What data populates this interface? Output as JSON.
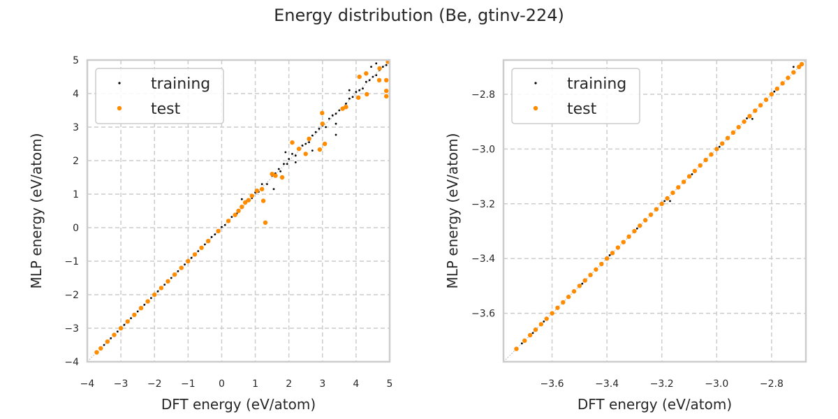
{
  "chart_data": {
    "title": "Energy distribution (Be, gtinv-224)",
    "panels": [
      {
        "type": "scatter",
        "xlabel": "DFT energy (eV/atom)",
        "ylabel": "MLP energy (eV/atom)",
        "xlim": [
          -4,
          5
        ],
        "ylim": [
          -4,
          5
        ],
        "xticks": [
          "−4",
          "−3",
          "−2",
          "−1",
          "0",
          "1",
          "2",
          "3",
          "4",
          "5"
        ],
        "yticks": [
          "−4",
          "−3",
          "−2",
          "−1",
          "0",
          "1",
          "2",
          "3",
          "4",
          "5"
        ],
        "tick_values": [
          -4,
          -3,
          -2,
          -1,
          0,
          1,
          2,
          3,
          4,
          5
        ],
        "grid": true,
        "legend": "top-left",
        "diagonal": true,
        "series": [
          {
            "name": "training",
            "color": "#000000",
            "points": [
              [
                -3.7,
                -3.7
              ],
              [
                -3.5,
                -3.5
              ],
              [
                -3.3,
                -3.3
              ],
              [
                -3.1,
                -3.1
              ],
              [
                -2.9,
                -2.9
              ],
              [
                -2.7,
                -2.7
              ],
              [
                -2.5,
                -2.5
              ],
              [
                -2.3,
                -2.3
              ],
              [
                -2.1,
                -2.1
              ],
              [
                -1.9,
                -1.9
              ],
              [
                -1.7,
                -1.7
              ],
              [
                -1.5,
                -1.5
              ],
              [
                -1.3,
                -1.3
              ],
              [
                -1.1,
                -1.1
              ],
              [
                -0.9,
                -0.9
              ],
              [
                -0.7,
                -0.7
              ],
              [
                -0.5,
                -0.5
              ],
              [
                -0.3,
                -0.28
              ],
              [
                -0.2,
                -0.2
              ],
              [
                0.0,
                0.02
              ],
              [
                0.1,
                0.08
              ],
              [
                0.3,
                0.32
              ],
              [
                0.45,
                0.42
              ],
              [
                0.6,
                0.58
              ],
              [
                0.75,
                0.8
              ],
              [
                0.9,
                0.88
              ],
              [
                1.0,
                1.05
              ],
              [
                1.1,
                1.07
              ],
              [
                1.2,
                1.3
              ],
              [
                1.35,
                1.3
              ],
              [
                1.5,
                1.55
              ],
              [
                1.6,
                1.62
              ],
              [
                1.7,
                1.75
              ],
              [
                1.75,
                1.68
              ],
              [
                1.85,
                1.9
              ],
              [
                1.95,
                1.9
              ],
              [
                2.0,
                2.05
              ],
              [
                2.1,
                2.2
              ],
              [
                2.2,
                2.15
              ],
              [
                2.3,
                2.35
              ],
              [
                2.4,
                2.45
              ],
              [
                2.5,
                2.5
              ],
              [
                2.6,
                2.55
              ],
              [
                2.7,
                2.75
              ],
              [
                2.8,
                2.85
              ],
              [
                2.9,
                2.95
              ],
              [
                3.0,
                3.05
              ],
              [
                3.1,
                3.0
              ],
              [
                3.2,
                3.25
              ],
              [
                3.3,
                3.35
              ],
              [
                3.4,
                3.4
              ],
              [
                3.5,
                3.5
              ],
              [
                3.6,
                3.55
              ],
              [
                3.7,
                3.7
              ],
              [
                3.8,
                3.85
              ],
              [
                3.9,
                3.9
              ],
              [
                4.0,
                4.05
              ],
              [
                4.1,
                4.1
              ],
              [
                4.2,
                4.15
              ],
              [
                4.3,
                4.35
              ],
              [
                4.4,
                4.4
              ],
              [
                4.5,
                4.5
              ],
              [
                4.6,
                4.55
              ],
              [
                4.7,
                4.7
              ],
              [
                4.8,
                4.8
              ],
              [
                4.9,
                4.85
              ],
              [
                3.4,
                2.77
              ],
              [
                2.7,
                2.3
              ],
              [
                1.9,
                2.25
              ],
              [
                3.4,
                3.1
              ],
              [
                4.45,
                4.8
              ],
              [
                1.55,
                1.15
              ],
              [
                0.6,
                0.85
              ],
              [
                2.2,
                1.95
              ],
              [
                3.8,
                4.1
              ],
              [
                4.6,
                4.9
              ]
            ]
          },
          {
            "name": "test",
            "color": "#ff8c00",
            "points": [
              [
                -3.72,
                -3.72
              ],
              [
                -3.6,
                -3.6
              ],
              [
                -3.4,
                -3.4
              ],
              [
                -3.2,
                -3.2
              ],
              [
                -3.0,
                -3.0
              ],
              [
                -2.8,
                -2.8
              ],
              [
                -2.6,
                -2.6
              ],
              [
                -2.4,
                -2.4
              ],
              [
                -2.2,
                -2.2
              ],
              [
                -2.0,
                -2.0
              ],
              [
                -1.8,
                -1.8
              ],
              [
                -1.6,
                -1.6
              ],
              [
                -1.4,
                -1.4
              ],
              [
                -1.2,
                -1.2
              ],
              [
                -1.0,
                -1.0
              ],
              [
                -0.8,
                -0.8
              ],
              [
                -0.6,
                -0.6
              ],
              [
                -0.4,
                -0.4
              ],
              [
                -0.1,
                -0.1
              ],
              [
                0.2,
                0.2
              ],
              [
                0.4,
                0.38
              ],
              [
                0.5,
                0.5
              ],
              [
                0.6,
                0.62
              ],
              [
                0.7,
                0.75
              ],
              [
                0.8,
                0.82
              ],
              [
                0.9,
                0.95
              ],
              [
                1.05,
                1.1
              ],
              [
                1.2,
                1.15
              ],
              [
                1.24,
                0.8
              ],
              [
                1.3,
                0.15
              ],
              [
                1.5,
                1.6
              ],
              [
                1.6,
                1.55
              ],
              [
                1.8,
                1.5
              ],
              [
                2.1,
                2.54
              ],
              [
                2.3,
                2.35
              ],
              [
                2.5,
                2.2
              ],
              [
                2.6,
                2.65
              ],
              [
                2.92,
                2.33
              ],
              [
                3.07,
                2.5
              ],
              [
                2.99,
                3.42
              ],
              [
                3.0,
                3.1
              ],
              [
                3.6,
                3.55
              ],
              [
                3.7,
                3.6
              ],
              [
                4.07,
                3.88
              ],
              [
                4.32,
                3.98
              ],
              [
                4.1,
                4.5
              ],
              [
                4.3,
                4.6
              ],
              [
                4.69,
                4.4
              ],
              [
                4.9,
                4.4
              ],
              [
                4.9,
                4.08
              ],
              [
                4.9,
                3.92
              ],
              [
                4.95,
                4.95
              ],
              [
                4.7,
                4.75
              ]
            ]
          }
        ]
      },
      {
        "type": "scatter",
        "xlabel": "DFT energy (eV/atom)",
        "ylabel": "MLP energy (eV/atom)",
        "xlim": [
          -3.777,
          -2.675
        ],
        "ylim": [
          -3.777,
          -2.675
        ],
        "xticks": [
          "−3.6",
          "−3.4",
          "−3.2",
          "−3.0",
          "−2.8"
        ],
        "yticks": [
          "−3.6",
          "−3.4",
          "−3.2",
          "−3.0",
          "−2.8"
        ],
        "tick_values": [
          -3.6,
          -3.4,
          -3.2,
          -3.0,
          -2.8
        ],
        "grid": true,
        "legend": "top-left",
        "diagonal": true,
        "series": [
          {
            "name": "training",
            "color": "#000000",
            "points": [
              [
                -3.71,
                -3.71
              ],
              [
                -3.67,
                -3.672
              ],
              [
                -3.63,
                -3.63
              ],
              [
                -3.58,
                -3.582
              ],
              [
                -3.54,
                -3.54
              ],
              [
                -3.49,
                -3.492
              ],
              [
                -3.44,
                -3.44
              ],
              [
                -3.39,
                -3.388
              ],
              [
                -3.34,
                -3.342
              ],
              [
                -3.29,
                -3.29
              ],
              [
                -3.24,
                -3.243
              ],
              [
                -3.19,
                -3.19
              ],
              [
                -3.14,
                -3.138
              ],
              [
                -3.09,
                -3.092
              ],
              [
                -3.04,
                -3.04
              ],
              [
                -2.99,
                -2.992
              ],
              [
                -2.94,
                -2.94
              ],
              [
                -2.89,
                -2.888
              ],
              [
                -2.84,
                -2.842
              ],
              [
                -2.79,
                -2.79
              ],
              [
                -2.74,
                -2.738
              ],
              [
                -2.7,
                -2.7
              ],
              [
                -3.17,
                -3.19
              ],
              [
                -2.87,
                -2.89
              ],
              [
                -2.72,
                -2.7
              ]
            ]
          },
          {
            "name": "test",
            "color": "#ff8c00",
            "points": [
              [
                -3.73,
                -3.73
              ],
              [
                -3.7,
                -3.7
              ],
              [
                -3.68,
                -3.68
              ],
              [
                -3.66,
                -3.66
              ],
              [
                -3.64,
                -3.64
              ],
              [
                -3.62,
                -3.62
              ],
              [
                -3.6,
                -3.6
              ],
              [
                -3.58,
                -3.58
              ],
              [
                -3.56,
                -3.56
              ],
              [
                -3.54,
                -3.54
              ],
              [
                -3.52,
                -3.52
              ],
              [
                -3.5,
                -3.5
              ],
              [
                -3.48,
                -3.48
              ],
              [
                -3.46,
                -3.46
              ],
              [
                -3.44,
                -3.44
              ],
              [
                -3.42,
                -3.42
              ],
              [
                -3.4,
                -3.4
              ],
              [
                -3.38,
                -3.38
              ],
              [
                -3.36,
                -3.36
              ],
              [
                -3.34,
                -3.34
              ],
              [
                -3.32,
                -3.32
              ],
              [
                -3.3,
                -3.3
              ],
              [
                -3.28,
                -3.28
              ],
              [
                -3.26,
                -3.26
              ],
              [
                -3.24,
                -3.24
              ],
              [
                -3.22,
                -3.22
              ],
              [
                -3.2,
                -3.2
              ],
              [
                -3.18,
                -3.18
              ],
              [
                -3.16,
                -3.16
              ],
              [
                -3.14,
                -3.14
              ],
              [
                -3.12,
                -3.12
              ],
              [
                -3.1,
                -3.1
              ],
              [
                -3.08,
                -3.08
              ],
              [
                -3.06,
                -3.06
              ],
              [
                -3.04,
                -3.04
              ],
              [
                -3.02,
                -3.02
              ],
              [
                -3.0,
                -3.0
              ],
              [
                -2.98,
                -2.98
              ],
              [
                -2.96,
                -2.96
              ],
              [
                -2.94,
                -2.94
              ],
              [
                -2.92,
                -2.92
              ],
              [
                -2.9,
                -2.9
              ],
              [
                -2.88,
                -2.88
              ],
              [
                -2.86,
                -2.86
              ],
              [
                -2.84,
                -2.84
              ],
              [
                -2.82,
                -2.82
              ],
              [
                -2.8,
                -2.8
              ],
              [
                -2.78,
                -2.78
              ],
              [
                -2.76,
                -2.76
              ],
              [
                -2.74,
                -2.74
              ],
              [
                -2.72,
                -2.72
              ],
              [
                -2.7,
                -2.7
              ],
              [
                -2.69,
                -2.69
              ]
            ]
          }
        ]
      }
    ]
  }
}
